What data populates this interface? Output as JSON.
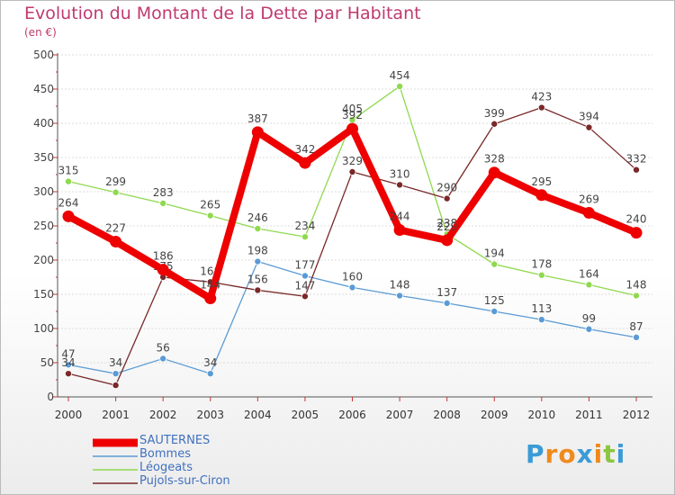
{
  "header": {
    "title": "Evolution du Montant de la Dette par Habitant",
    "subtitle": "(en €)"
  },
  "logo": {
    "text": "Proxiti",
    "letters": [
      "P",
      "r",
      "o",
      "x",
      "i",
      "t",
      "i"
    ]
  },
  "colors": {
    "title": "#c03a6e",
    "legend_text": "#4070c0",
    "axis": "#555555",
    "grid": "#dddddd",
    "logo": [
      "#3a9bd6",
      "#f08a1c",
      "#f08a1c",
      "#3a9bd6",
      "#f08a1c",
      "#8cc63f",
      "#3a9bd6"
    ]
  },
  "chart_data": {
    "type": "line",
    "title": "Evolution du Montant de la Dette par Habitant",
    "subtitle": "(en €)",
    "xlabel": "",
    "ylabel": "",
    "ylim": [
      0,
      500
    ],
    "yticks": [
      0,
      50,
      100,
      150,
      200,
      250,
      300,
      350,
      400,
      450,
      500
    ],
    "categories": [
      "2000",
      "2001",
      "2002",
      "2003",
      "2004",
      "2005",
      "2006",
      "2007",
      "2008",
      "2009",
      "2010",
      "2011",
      "2012"
    ],
    "grid": "horizontal",
    "legend_position": "bottom-left",
    "series": [
      {
        "name": "SAUTERNES",
        "color": "#ee0000",
        "emphasis": "thick",
        "values": [
          264,
          227,
          186,
          144,
          387,
          342,
          392,
          244,
          229,
          328,
          295,
          269,
          240
        ],
        "labels": [
          "264",
          "227",
          "186",
          "144",
          "387",
          "342",
          "392",
          "244",
          "229",
          "328",
          "295",
          "269",
          "240"
        ]
      },
      {
        "name": "Bommes",
        "color": "#5b9bd5",
        "emphasis": "thin",
        "values": [
          47,
          34,
          56,
          34,
          198,
          177,
          160,
          148,
          137,
          125,
          113,
          99,
          87
        ],
        "labels": [
          "47",
          "34",
          "56",
          "34",
          "198",
          "177",
          "160",
          "148",
          "137",
          "125",
          "113",
          "99",
          "87"
        ]
      },
      {
        "name": "Léogeats",
        "color": "#8fd94f",
        "emphasis": "thin",
        "values": [
          315,
          299,
          283,
          265,
          246,
          234,
          405,
          454,
          238,
          194,
          178,
          164,
          148
        ],
        "labels": [
          "315",
          "299",
          "283",
          "265",
          "246",
          "234",
          "405",
          "454",
          "238",
          "194",
          "178",
          "164",
          "148"
        ]
      },
      {
        "name": "Pujols-sur-Ciron",
        "color": "#7a2828",
        "emphasis": "thin",
        "values": [
          34,
          17,
          175,
          168,
          156,
          147,
          329,
          310,
          290,
          399,
          423,
          394,
          332
        ],
        "labels": [
          "34",
          "",
          "175",
          "168",
          "156",
          "147",
          "329",
          "310",
          "290",
          "399",
          "423",
          "394",
          "332"
        ]
      }
    ]
  }
}
